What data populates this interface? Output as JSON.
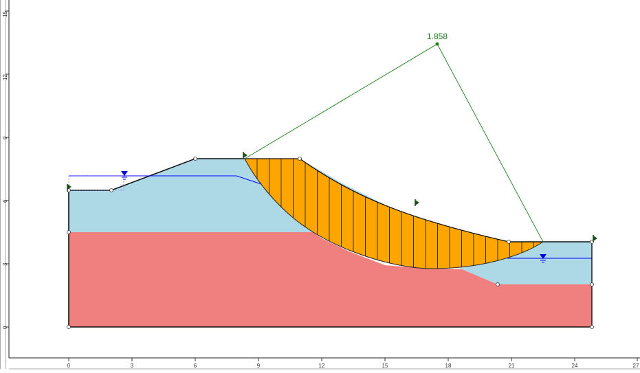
{
  "x_ticks": [
    "0",
    "3",
    "6",
    "9",
    "12",
    "15",
    "18",
    "21",
    "24",
    "27"
  ],
  "y_ticks": [
    "0",
    "3",
    "6",
    "9",
    "12",
    "15"
  ],
  "factor_of_safety": "1.858",
  "colors": {
    "upper_soil": "#add8e6",
    "lower_soil": "#f08080",
    "slip_mass": "#ffa500",
    "slip_surface_lines": "#2e8b2e",
    "water_table": "#0000ff",
    "boundary": "#000000"
  },
  "icons": {
    "water_marker": "inverted-triangle-icon",
    "flag_marker": "flag-icon"
  }
}
